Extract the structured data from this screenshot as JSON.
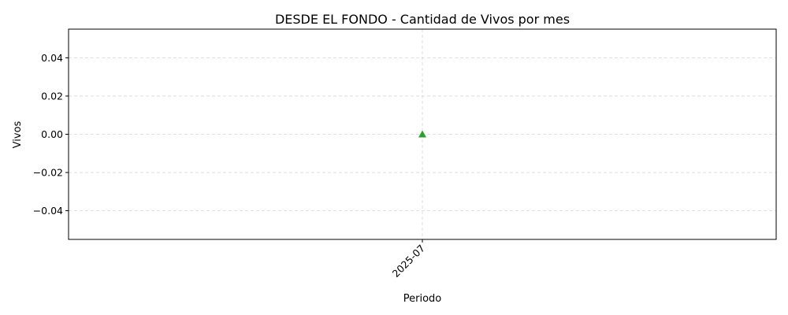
{
  "chart_data": {
    "type": "line",
    "title": "DESDE EL FONDO - Cantidad de Vivos por mes",
    "xlabel": "Periodo",
    "ylabel": "Vivos",
    "categories": [
      "2025-07"
    ],
    "series": [
      {
        "values": [
          0
        ],
        "color": "#2ca02c",
        "marker": "triangle-up"
      }
    ],
    "ylim": [
      -0.055,
      0.055
    ],
    "yticks": [
      -0.04,
      -0.02,
      0.0,
      0.02,
      0.04
    ],
    "ytick_labels": [
      "−0.04",
      "−0.02",
      "0.00",
      "0.02",
      "0.04"
    ],
    "xtick_rotation": 45,
    "grid": true
  }
}
